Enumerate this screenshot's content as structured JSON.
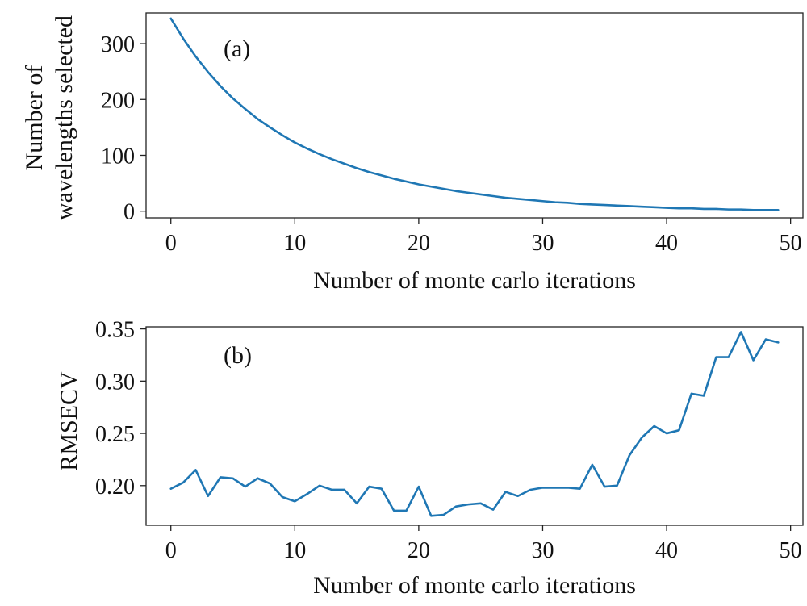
{
  "chart_data": [
    {
      "type": "line",
      "panel_label": "(a)",
      "xlabel": "Number of monte carlo iterations",
      "ylabel_lines": [
        "Number of",
        "wavelengths selected"
      ],
      "xlim": [
        -2,
        51
      ],
      "ylim": [
        -12,
        355
      ],
      "xticks": [
        0,
        10,
        20,
        30,
        40,
        50
      ],
      "yticks": [
        0,
        100,
        200,
        300
      ],
      "grid": false,
      "color": "#1f77b4",
      "x": [
        0,
        1,
        2,
        3,
        4,
        5,
        6,
        7,
        8,
        9,
        10,
        11,
        12,
        13,
        14,
        15,
        16,
        17,
        18,
        19,
        20,
        21,
        22,
        23,
        24,
        25,
        26,
        27,
        28,
        29,
        30,
        31,
        32,
        33,
        34,
        35,
        36,
        37,
        38,
        39,
        40,
        41,
        42,
        43,
        44,
        45,
        46,
        47,
        48,
        49
      ],
      "y": [
        345,
        309,
        277,
        249,
        224,
        202,
        183,
        165,
        150,
        136,
        123,
        112,
        102,
        93,
        85,
        77,
        70,
        64,
        58,
        53,
        48,
        44,
        40,
        36,
        33,
        30,
        27,
        24,
        22,
        20,
        18,
        16,
        15,
        13,
        12,
        11,
        10,
        9,
        8,
        7,
        6,
        5,
        5,
        4,
        4,
        3,
        3,
        2,
        2,
        2
      ]
    },
    {
      "type": "line",
      "panel_label": "(b)",
      "xlabel": "Number of monte carlo iterations",
      "ylabel_lines": [
        "RMSECV"
      ],
      "xlim": [
        -2,
        51
      ],
      "ylim": [
        0.162,
        0.352
      ],
      "xticks": [
        0,
        10,
        20,
        30,
        40,
        50
      ],
      "yticks": [
        0.2,
        0.25,
        0.3,
        0.35
      ],
      "ytick_labels": [
        "0.20",
        "0.25",
        "0.30",
        "0.35"
      ],
      "grid": false,
      "color": "#1f77b4",
      "x": [
        0,
        1,
        2,
        3,
        4,
        5,
        6,
        7,
        8,
        9,
        10,
        11,
        12,
        13,
        14,
        15,
        16,
        17,
        18,
        19,
        20,
        21,
        22,
        23,
        24,
        25,
        26,
        27,
        28,
        29,
        30,
        31,
        32,
        33,
        34,
        35,
        36,
        37,
        38,
        39,
        40,
        41,
        42,
        43,
        44,
        45,
        46,
        47,
        48,
        49
      ],
      "y": [
        0.197,
        0.203,
        0.215,
        0.19,
        0.208,
        0.207,
        0.199,
        0.207,
        0.202,
        0.189,
        0.185,
        0.192,
        0.2,
        0.196,
        0.196,
        0.183,
        0.199,
        0.197,
        0.176,
        0.176,
        0.199,
        0.171,
        0.172,
        0.18,
        0.182,
        0.183,
        0.177,
        0.194,
        0.19,
        0.196,
        0.198,
        0.198,
        0.198,
        0.197,
        0.22,
        0.199,
        0.2,
        0.229,
        0.246,
        0.257,
        0.25,
        0.253,
        0.288,
        0.286,
        0.323,
        0.323,
        0.347,
        0.32,
        0.34,
        0.337
      ]
    }
  ]
}
